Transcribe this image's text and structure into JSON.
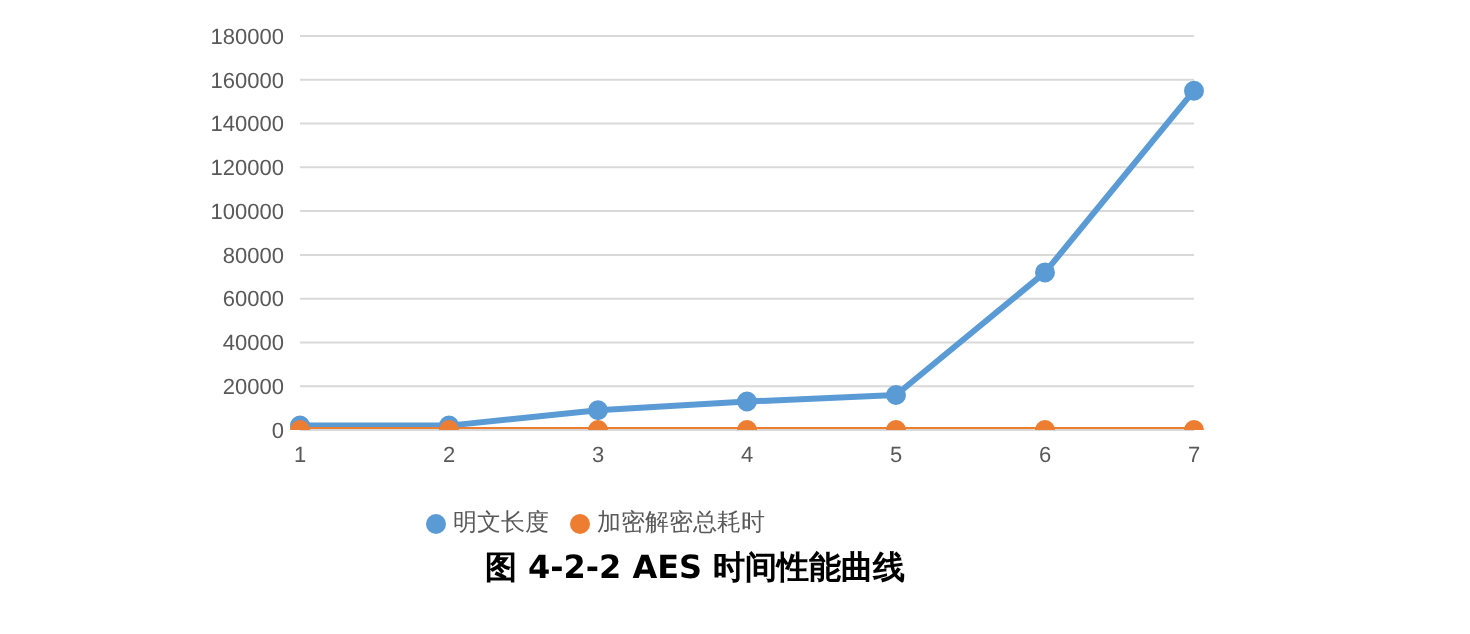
{
  "chart_data": {
    "type": "line",
    "title": "图 4-2-2 AES 时间性能曲线",
    "categories": [
      "1",
      "2",
      "3",
      "4",
      "5",
      "6",
      "7"
    ],
    "series": [
      {
        "name": "明文长度",
        "color": "#5b9bd5",
        "values": [
          2000,
          2000,
          9000,
          13000,
          16000,
          72000,
          155000
        ]
      },
      {
        "name": "加密解密总耗时",
        "color": "#ed7d31",
        "values": [
          0,
          0,
          0,
          0,
          0,
          0,
          0
        ]
      }
    ],
    "ylim": [
      0,
      180000
    ],
    "yticks": [
      0,
      20000,
      40000,
      60000,
      80000,
      100000,
      120000,
      140000,
      160000,
      180000
    ],
    "grid": "y",
    "legend": "bottom",
    "marker": "circle",
    "line_style": "solid"
  }
}
